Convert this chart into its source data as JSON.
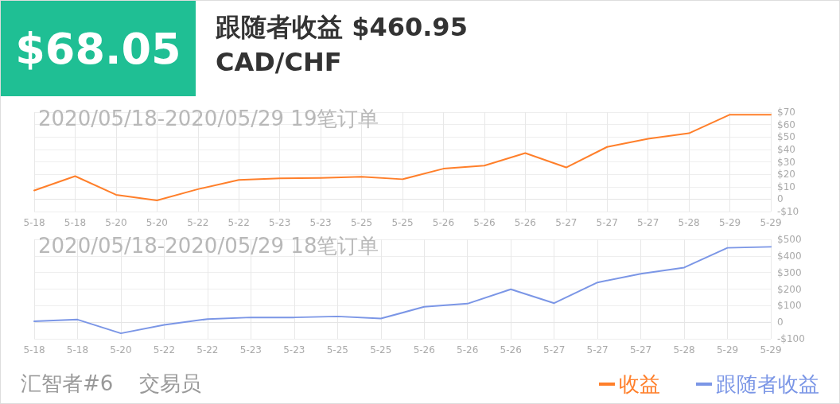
{
  "chart_data": [
    {
      "type": "other",
      "title": "跟随者收益 $460.95",
      "subtitle": "CAD/CHF",
      "annotations": [
        "$68.05"
      ]
    },
    {
      "type": "line",
      "title": "2020/05/18-2020/05/29 19笔订单",
      "categories": [
        "5-18",
        "5-18",
        "5-20",
        "5-20",
        "5-22",
        "5-22",
        "5-23",
        "5-23",
        "5-25",
        "5-25",
        "5-26",
        "5-26",
        "5-26",
        "5-27",
        "5-27",
        "5-27",
        "5-28",
        "5-29",
        "5-29"
      ],
      "series": [
        {
          "name": "收益",
          "color": "#ff7f2a",
          "values": [
            7,
            18.5,
            3.5,
            -1,
            8,
            15.5,
            16.7,
            17,
            18,
            16,
            24.5,
            27,
            37,
            25.5,
            42,
            48.5,
            53,
            68,
            68
          ]
        }
      ],
      "ylim": [
        -10,
        70
      ],
      "yticks": [
        {
          "value": -10,
          "label": "-$10"
        },
        0,
        {
          "value": 10,
          "label": "$10"
        },
        {
          "value": 20,
          "label": "$20"
        },
        {
          "value": 30,
          "label": "$30"
        },
        {
          "value": 40,
          "label": "$40"
        },
        {
          "value": 50,
          "label": "$50"
        },
        {
          "value": 60,
          "label": "$60"
        },
        {
          "value": 70,
          "label": "$70"
        }
      ],
      "grid": true,
      "legend": "bottom right",
      "marker": "none",
      "line_style": "solid"
    },
    {
      "type": "line",
      "title": "2020/05/18-2020/05/29 18笔订单",
      "categories": [
        "5-18",
        "5-18",
        "5-20",
        "5-22",
        "5-22",
        "5-23",
        "5-23",
        "5-25",
        "5-25",
        "5-26",
        "5-26",
        "5-26",
        "5-27",
        "5-27",
        "5-27",
        "5-28",
        "5-29",
        "5-29"
      ],
      "series": [
        {
          "name": "跟随者收益",
          "color": "#7b96e6",
          "values": [
            6,
            16,
            -67,
            -16,
            19,
            29,
            29,
            35,
            22,
            93,
            112,
            199,
            115,
            240,
            292,
            330,
            449,
            455
          ]
        }
      ],
      "ylim": [
        -100,
        500
      ],
      "yticks": [
        {
          "value": -100,
          "label": "-$100"
        },
        0,
        {
          "value": 100,
          "label": "$100"
        },
        {
          "value": 200,
          "label": "$200"
        },
        {
          "value": 300,
          "label": "$300"
        },
        {
          "value": 400,
          "label": "$400"
        },
        {
          "value": 500,
          "label": "$500"
        }
      ],
      "grid": true,
      "legend": "bottom right",
      "marker": "none",
      "line_style": "solid",
      "annotations": [
        "汇智者#6    交易员"
      ]
    }
  ]
}
